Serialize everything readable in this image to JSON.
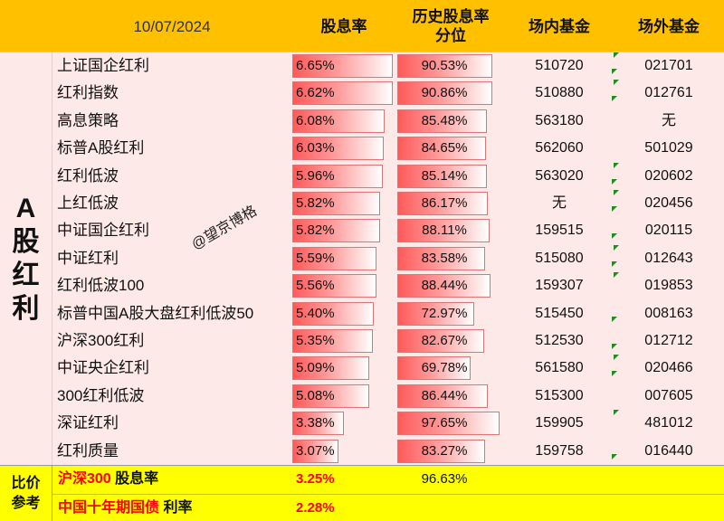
{
  "header": {
    "date": "10/07/2024",
    "col_yield": "股息率",
    "col_percentile": "历史股息率分位",
    "col_onexchange": "场内基金",
    "col_offexchange": "场外基金"
  },
  "side_label": "A股红利",
  "watermark": "@望京博格",
  "colors": {
    "header_bg": "#ffc000",
    "body_bg": "#fde9e7",
    "bar_red": "#ff5a5a",
    "compare_bg": "#ffff00",
    "highlight_text": "#ff0000",
    "marker_green": "#228b22"
  },
  "rows": [
    {
      "name": "上证国企红利",
      "yield": "6.65%",
      "yield_num": 6.65,
      "pct": "90.53%",
      "pct_num": 90.53,
      "code_in": "510720",
      "code_out": "021701"
    },
    {
      "name": "红利指数",
      "yield": "6.62%",
      "yield_num": 6.62,
      "pct": "90.86%",
      "pct_num": 90.86,
      "code_in": "510880",
      "code_out": "012761"
    },
    {
      "name": "高息策略",
      "yield": "6.08%",
      "yield_num": 6.08,
      "pct": "85.48%",
      "pct_num": 85.48,
      "code_in": "563180",
      "code_out": "无"
    },
    {
      "name": "标普A股红利",
      "yield": "6.03%",
      "yield_num": 6.03,
      "pct": "84.65%",
      "pct_num": 84.65,
      "code_in": "562060",
      "code_out": "501029"
    },
    {
      "name": "红利低波",
      "yield": "5.96%",
      "yield_num": 5.96,
      "pct": "85.14%",
      "pct_num": 85.14,
      "code_in": "563020",
      "code_out": "020602"
    },
    {
      "name": "上红低波",
      "yield": "5.82%",
      "yield_num": 5.82,
      "pct": "86.17%",
      "pct_num": 86.17,
      "code_in": "无",
      "code_out": "020456"
    },
    {
      "name": "中证国企红利",
      "yield": "5.82%",
      "yield_num": 5.82,
      "pct": "88.11%",
      "pct_num": 88.11,
      "code_in": "159515",
      "code_out": "020115"
    },
    {
      "name": "中证红利",
      "yield": "5.59%",
      "yield_num": 5.59,
      "pct": "83.58%",
      "pct_num": 83.58,
      "code_in": "515080",
      "code_out": "012643"
    },
    {
      "name": "红利低波100",
      "yield": "5.56%",
      "yield_num": 5.56,
      "pct": "88.44%",
      "pct_num": 88.44,
      "code_in": "159307",
      "code_out": "019853"
    },
    {
      "name": "标普中国A股大盘红利低波50",
      "yield": "5.40%",
      "yield_num": 5.4,
      "pct": "72.97%",
      "pct_num": 72.97,
      "code_in": "515450",
      "code_out": "008163"
    },
    {
      "name": "沪深300红利",
      "yield": "5.35%",
      "yield_num": 5.35,
      "pct": "82.67%",
      "pct_num": 82.67,
      "code_in": "512530",
      "code_out": "012712"
    },
    {
      "name": "中证央企红利",
      "yield": "5.09%",
      "yield_num": 5.09,
      "pct": "69.78%",
      "pct_num": 69.78,
      "code_in": "561580",
      "code_out": "020466"
    },
    {
      "name": "300红利低波",
      "yield": "5.08%",
      "yield_num": 5.08,
      "pct": "86.44%",
      "pct_num": 86.44,
      "code_in": "515300",
      "code_out": "007605"
    },
    {
      "name": "深证红利",
      "yield": "3.38%",
      "yield_num": 3.38,
      "pct": "97.65%",
      "pct_num": 97.65,
      "code_in": "159905",
      "code_out": "481012"
    },
    {
      "name": "红利质量",
      "yield": "3.07%",
      "yield_num": 3.07,
      "pct": "83.27%",
      "pct_num": 83.27,
      "code_in": "159758",
      "code_out": "016440"
    }
  ],
  "compare": {
    "label": "比价参考",
    "hs300_name": "沪深300",
    "hs300_suffix": " 股息率",
    "hs300_yield": "3.25%",
    "hs300_pct": "96.63%",
    "bond_name": "中国十年期国债",
    "bond_suffix": " 利率",
    "bond_rate": "2.28%"
  }
}
